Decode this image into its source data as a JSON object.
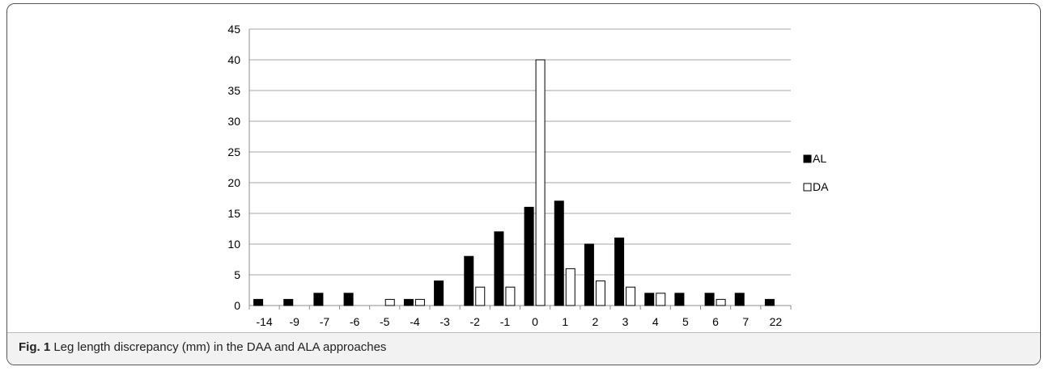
{
  "chart_data": {
    "type": "bar",
    "categories": [
      "-14",
      "-9",
      "-7",
      "-6",
      "-5",
      "-4",
      "-3",
      "-2",
      "-1",
      "0",
      "1",
      "2",
      "3",
      "4",
      "5",
      "6",
      "7",
      "22"
    ],
    "series": [
      {
        "name": "AL",
        "color": "#000000",
        "values": [
          1,
          1,
          2,
          2,
          0,
          1,
          4,
          8,
          12,
          16,
          17,
          10,
          11,
          2,
          2,
          2,
          2,
          1
        ]
      },
      {
        "name": "DA",
        "color": "#ffffff",
        "values": [
          0,
          0,
          0,
          0,
          1,
          1,
          0,
          3,
          3,
          40,
          6,
          4,
          3,
          2,
          0,
          1,
          0,
          0
        ]
      }
    ],
    "ylim": [
      0,
      45
    ],
    "yticks": [
      "0",
      "5",
      "10",
      "15",
      "20",
      "25",
      "30",
      "35",
      "40",
      "45"
    ],
    "grid": true,
    "legend_position": "right",
    "title": "",
    "xlabel": "",
    "ylabel": ""
  },
  "caption": {
    "label": "Fig. 1",
    "text": " Leg length discrepancy (mm) in the DAA and ALA approaches"
  }
}
